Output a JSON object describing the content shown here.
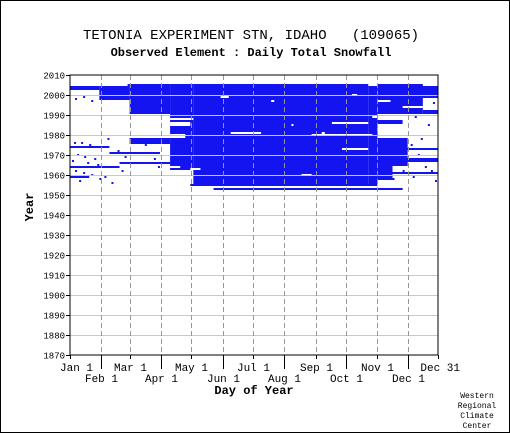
{
  "chart_data": {
    "type": "heatmap",
    "title": "TETONIA EXPERIMENT STN, IDAHO   (109065)",
    "subtitle": "Observed Element : Daily Total Snowfall",
    "xlabel": "Day of Year",
    "ylabel": "Year",
    "credit": [
      "Western",
      "Regional",
      "Climate",
      "Center"
    ],
    "xlim": [
      1,
      365
    ],
    "ylim": [
      1870,
      2010
    ],
    "x_ticks": [
      {
        "label": "Jan 1",
        "doy": 1,
        "row": 1
      },
      {
        "label": "Feb 1",
        "doy": 32,
        "row": 2
      },
      {
        "label": "Mar 1",
        "doy": 60,
        "row": 1
      },
      {
        "label": "Apr 1",
        "doy": 91,
        "row": 2
      },
      {
        "label": "May 1",
        "doy": 121,
        "row": 1
      },
      {
        "label": "Jun 1",
        "doy": 152,
        "row": 2
      },
      {
        "label": "Jul 1",
        "doy": 182,
        "row": 1
      },
      {
        "label": "Aug 1",
        "doy": 213,
        "row": 2
      },
      {
        "label": "Sep 1",
        "doy": 244,
        "row": 1
      },
      {
        "label": "Oct 1",
        "doy": 274,
        "row": 2
      },
      {
        "label": "Nov 1",
        "doy": 305,
        "row": 1
      },
      {
        "label": "Dec 1",
        "doy": 335,
        "row": 2
      },
      {
        "label": "Dec 31",
        "doy": 365,
        "row": 1
      }
    ],
    "y_ticks": [
      1870,
      1880,
      1890,
      1900,
      1910,
      1920,
      1930,
      1940,
      1950,
      1960,
      1970,
      1980,
      1990,
      2000,
      2010
    ],
    "grid": true,
    "mark_color": "#1414f0",
    "observed_segments": [
      {
        "y0": 1954.5,
        "y1": 2005.5,
        "d0": 123,
        "d1": 296
      },
      {
        "y0": 1952.5,
        "y1": 1953.5,
        "d0": 143,
        "d1": 330
      },
      {
        "y0": 1954.5,
        "y1": 1955.5,
        "d0": 120,
        "d1": 305
      },
      {
        "y0": 1955.5,
        "y1": 2004.5,
        "d0": 296,
        "d1": 305
      },
      {
        "y0": 1957.5,
        "y1": 1965.5,
        "d0": 305,
        "d1": 320
      },
      {
        "y0": 1962.5,
        "y1": 2005.5,
        "d0": 100,
        "d1": 123
      },
      {
        "y0": 1990.5,
        "y1": 2005.5,
        "d0": 60,
        "d1": 100
      },
      {
        "y0": 1975.5,
        "y1": 1978.5,
        "d0": 60,
        "d1": 100
      },
      {
        "y0": 1970.5,
        "y1": 1971.5,
        "d0": 40,
        "d1": 90
      },
      {
        "y0": 1997.5,
        "y1": 2004.5,
        "d0": 30,
        "d1": 60
      },
      {
        "y0": 2002.5,
        "y1": 2004.5,
        "d0": 1,
        "d1": 30
      },
      {
        "y0": 1990.5,
        "y1": 2005.5,
        "d0": 305,
        "d1": 350
      },
      {
        "y0": 1985.5,
        "y1": 1987.5,
        "d0": 305,
        "d1": 330
      },
      {
        "y0": 1964.5,
        "y1": 1978.5,
        "d0": 305,
        "d1": 335
      },
      {
        "y0": 1998.5,
        "y1": 2004.5,
        "d0": 330,
        "d1": 365
      },
      {
        "y0": 1990.5,
        "y1": 1992.5,
        "d0": 350,
        "d1": 365
      },
      {
        "y0": 1960.5,
        "y1": 1961.5,
        "d0": 300,
        "d1": 365
      },
      {
        "y0": 1966.5,
        "y1": 1968.5,
        "d0": 300,
        "d1": 365
      },
      {
        "y0": 1972.5,
        "y1": 1973.5,
        "d0": 305,
        "d1": 365
      },
      {
        "y0": 1958.5,
        "y1": 1959.5,
        "d0": 1,
        "d1": 20
      },
      {
        "y0": 1963.5,
        "y1": 1964.5,
        "d0": 1,
        "d1": 50
      },
      {
        "y0": 1973.5,
        "y1": 1974.5,
        "d0": 1,
        "d1": 40
      },
      {
        "y0": 1965.5,
        "y1": 1966.5,
        "d0": 50,
        "d1": 100
      }
    ],
    "gap_segments": [
      {
        "y0": 1987.5,
        "y1": 1988.5,
        "d0": 100,
        "d1": 123
      },
      {
        "y0": 1984.5,
        "y1": 1986.5,
        "d0": 100,
        "d1": 120
      },
      {
        "y0": 1978.5,
        "y1": 1980.5,
        "d0": 100,
        "d1": 115
      },
      {
        "y0": 1998.5,
        "y1": 1999.5,
        "d0": 150,
        "d1": 158
      },
      {
        "y0": 1980.5,
        "y1": 1981.5,
        "d0": 160,
        "d1": 190
      },
      {
        "y0": 1979.5,
        "y1": 1980.5,
        "d0": 240,
        "d1": 300
      },
      {
        "y0": 1980.5,
        "y1": 1981.5,
        "d0": 250,
        "d1": 253
      },
      {
        "y0": 1985.5,
        "y1": 1986.5,
        "d0": 260,
        "d1": 296
      },
      {
        "y0": 1972.5,
        "y1": 1973.5,
        "d0": 270,
        "d1": 296
      },
      {
        "y0": 1959.5,
        "y1": 1960.5,
        "d0": 230,
        "d1": 240
      },
      {
        "y0": 1999.5,
        "y1": 2000.5,
        "d0": 280,
        "d1": 285
      },
      {
        "y0": 1996.5,
        "y1": 1997.5,
        "d0": 200,
        "d1": 203
      },
      {
        "y0": 1984.5,
        "y1": 1985.5,
        "d0": 220,
        "d1": 222
      },
      {
        "y0": 1962.5,
        "y1": 1963.5,
        "d0": 120,
        "d1": 130
      },
      {
        "y0": 1963.5,
        "y1": 1964.5,
        "d0": 100,
        "d1": 110
      },
      {
        "y0": 1996.5,
        "y1": 1997.5,
        "d0": 305,
        "d1": 318
      },
      {
        "y0": 1993.5,
        "y1": 1994.5,
        "d0": 330,
        "d1": 350
      },
      {
        "y0": 1988.5,
        "y1": 1989.5,
        "d0": 300,
        "d1": 330
      }
    ],
    "scattered_points": [
      {
        "x": 5,
        "y": 1976
      },
      {
        "x": 12,
        "y": 1976
      },
      {
        "x": 20,
        "y": 1975
      },
      {
        "x": 8,
        "y": 1970
      },
      {
        "x": 15,
        "y": 1969
      },
      {
        "x": 25,
        "y": 1968
      },
      {
        "x": 3,
        "y": 1967
      },
      {
        "x": 18,
        "y": 1966
      },
      {
        "x": 28,
        "y": 1965
      },
      {
        "x": 6,
        "y": 1962
      },
      {
        "x": 14,
        "y": 1961
      },
      {
        "x": 22,
        "y": 1960
      },
      {
        "x": 10,
        "y": 1957
      },
      {
        "x": 30,
        "y": 1958
      },
      {
        "x": 35,
        "y": 1959
      },
      {
        "x": 42,
        "y": 1956
      },
      {
        "x": 48,
        "y": 1972
      },
      {
        "x": 55,
        "y": 1969
      },
      {
        "x": 44,
        "y": 1964
      },
      {
        "x": 52,
        "y": 1962
      },
      {
        "x": 38,
        "y": 1978
      },
      {
        "x": 6,
        "y": 1998
      },
      {
        "x": 14,
        "y": 1999
      },
      {
        "x": 22,
        "y": 1997
      },
      {
        "x": 46,
        "y": 1999
      },
      {
        "x": 52,
        "y": 2000
      },
      {
        "x": 62,
        "y": 2001
      },
      {
        "x": 70,
        "y": 2002
      },
      {
        "x": 58,
        "y": 2005
      },
      {
        "x": 75,
        "y": 1975
      },
      {
        "x": 84,
        "y": 1968
      },
      {
        "x": 88,
        "y": 1964
      },
      {
        "x": 310,
        "y": 1962
      },
      {
        "x": 320,
        "y": 1958
      },
      {
        "x": 338,
        "y": 1975
      },
      {
        "x": 345,
        "y": 1970
      },
      {
        "x": 352,
        "y": 1964
      },
      {
        "x": 358,
        "y": 1962
      },
      {
        "x": 362,
        "y": 1957
      },
      {
        "x": 340,
        "y": 1959
      },
      {
        "x": 330,
        "y": 1962
      },
      {
        "x": 348,
        "y": 1978
      },
      {
        "x": 355,
        "y": 1985
      },
      {
        "x": 360,
        "y": 1996
      },
      {
        "x": 342,
        "y": 1989
      }
    ]
  }
}
